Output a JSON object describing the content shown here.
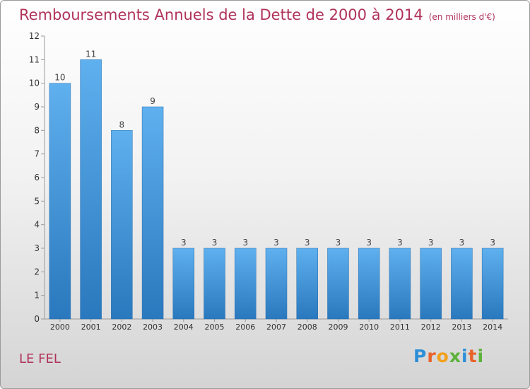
{
  "chart_data": {
    "type": "bar",
    "title": "Remboursements Annuels de la Dette de 2000 à 2014",
    "unit_note": "(en milliers d'€)",
    "categories": [
      "2000",
      "2001",
      "2002",
      "2003",
      "2004",
      "2005",
      "2006",
      "2007",
      "2008",
      "2009",
      "2010",
      "2011",
      "2012",
      "2013",
      "2014"
    ],
    "values": [
      10,
      11,
      8,
      9,
      3,
      3,
      3,
      3,
      3,
      3,
      3,
      3,
      3,
      3,
      3
    ],
    "ylim": [
      0,
      12
    ],
    "yticks": [
      0,
      1,
      2,
      3,
      4,
      5,
      6,
      7,
      8,
      9,
      10,
      11,
      12
    ],
    "grid": false,
    "bar_color": "#3b8fd6"
  },
  "place": "LE FEL",
  "logo": {
    "text": "Proxiti"
  }
}
